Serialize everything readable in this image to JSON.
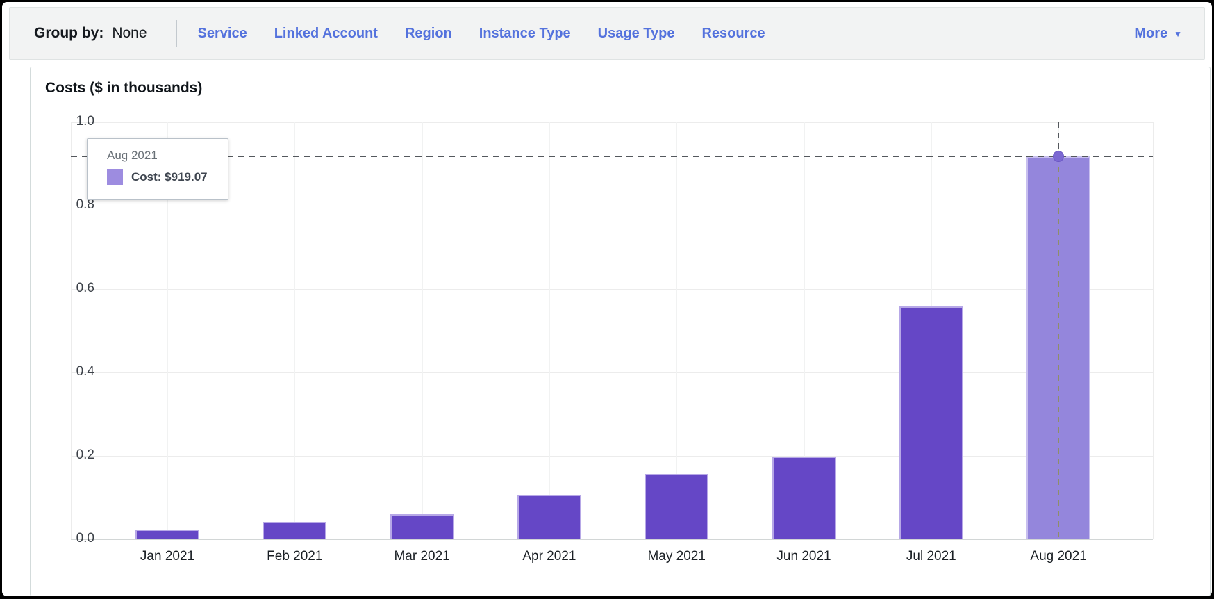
{
  "toolbar": {
    "group_by_label": "Group by:",
    "group_by_value": "None",
    "links": [
      "Service",
      "Linked Account",
      "Region",
      "Instance Type",
      "Usage Type",
      "Resource"
    ],
    "more_label": "More",
    "more_caret": "▼",
    "accent_color": "#5472dd"
  },
  "chart_data": {
    "type": "bar",
    "title": "Costs ($ in thousands)",
    "xlabel": "",
    "ylabel": "Costs ($ in thousands)",
    "categories": [
      "Jan 2021",
      "Feb 2021",
      "Mar 2021",
      "Apr 2021",
      "May 2021",
      "Jun 2021",
      "Jul 2021",
      "Aug 2021"
    ],
    "values": [
      0.023,
      0.042,
      0.06,
      0.107,
      0.157,
      0.198,
      0.558,
      0.919
    ],
    "values_unit": "thousands_usd",
    "y_ticks": [
      0.0,
      0.2,
      0.4,
      0.6,
      0.8,
      1.0
    ],
    "ylim": [
      0,
      1.0
    ],
    "grid": true,
    "legend_position": "none",
    "bar_color": "#6547c6",
    "highlighted_index": 7,
    "highlight_color": "#9486dc",
    "highlighted_value_label": "$919.07"
  },
  "tooltip": {
    "title": "Aug 2021",
    "label": "Cost: $919.07",
    "swatch_color": "#9d8ce0"
  }
}
